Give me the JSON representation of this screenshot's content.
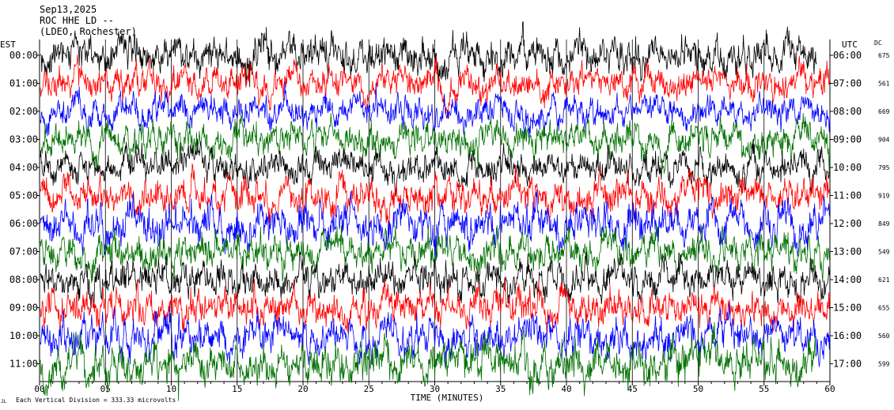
{
  "header": {
    "date": "Sep13,2025",
    "station": "ROC HHE LD --",
    "network": "(LDEO, Rochester)"
  },
  "left_axis_title": "EST",
  "right_axis_title": "UTC",
  "dc_title": "DC",
  "footer": {
    "scale_note": "Each Vertical Division = 333.33 microvolts",
    "corner_mark": "JL"
  },
  "colors": {
    "black": "#000000",
    "red": "#ff0000",
    "blue": "#0000ff",
    "green": "#007000"
  },
  "chart_data": {
    "type": "line",
    "title": "Sep13,2025 ROC HHE LD -- (LDEO, Rochester)",
    "xlabel": "TIME (MINUTES)",
    "ylabel": "",
    "xlim": [
      0,
      60
    ],
    "x_ticks": [
      "00",
      "05",
      "10",
      "15",
      "20",
      "25",
      "30",
      "35",
      "40",
      "45",
      "50",
      "55",
      "60"
    ],
    "grid": true,
    "rows": [
      {
        "est": "00:00",
        "utc": "06:00",
        "dc": "675",
        "color": "black",
        "amplitude": 1.0,
        "end_minute": 59
      },
      {
        "est": "01:00",
        "utc": "07:00",
        "dc": "561",
        "color": "red",
        "amplitude": 0.85,
        "end_minute": 60
      },
      {
        "est": "02:00",
        "utc": "08:00",
        "dc": "669",
        "color": "blue",
        "amplitude": 0.8,
        "end_minute": 60
      },
      {
        "est": "03:00",
        "utc": "09:00",
        "dc": "904",
        "color": "green",
        "amplitude": 0.9,
        "end_minute": 60
      },
      {
        "est": "04:00",
        "utc": "10:00",
        "dc": "795",
        "color": "black",
        "amplitude": 0.85,
        "end_minute": 60
      },
      {
        "est": "05:00",
        "utc": "11:00",
        "dc": "919",
        "color": "red",
        "amplitude": 0.95,
        "end_minute": 60
      },
      {
        "est": "06:00",
        "utc": "12:00",
        "dc": "849",
        "color": "blue",
        "amplitude": 1.05,
        "end_minute": 60
      },
      {
        "est": "07:00",
        "utc": "13:00",
        "dc": "549",
        "color": "green",
        "amplitude": 0.95,
        "end_minute": 60
      },
      {
        "est": "08:00",
        "utc": "14:00",
        "dc": "621",
        "color": "black",
        "amplitude": 0.95,
        "end_minute": 60
      },
      {
        "est": "09:00",
        "utc": "15:00",
        "dc": "655",
        "color": "red",
        "amplitude": 0.95,
        "end_minute": 60
      },
      {
        "est": "10:00",
        "utc": "16:00",
        "dc": "560",
        "color": "blue",
        "amplitude": 1.0,
        "end_minute": 60
      },
      {
        "est": "11:00",
        "utc": "17:00",
        "dc": "599",
        "color": "green",
        "amplitude": 1.1,
        "end_minute": 59
      }
    ]
  }
}
